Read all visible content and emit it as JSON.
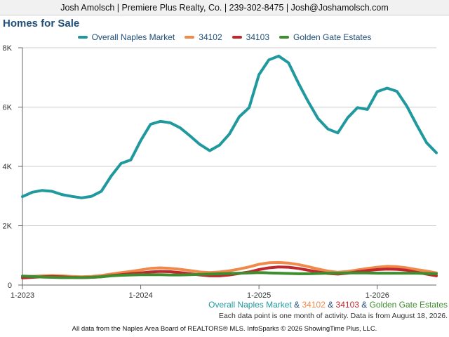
{
  "header": {
    "text": "Josh Amolsch | Premiere Plus Realty, Co. | 239-302-8475 | Josh@Joshamolsch.com"
  },
  "title": "Homes for Sale",
  "footer": {
    "series_line": [
      "Overall Naples Market",
      "34102",
      "34103",
      "Golden Gate Estates"
    ],
    "separator": "&",
    "note": "Each data point is one month of activity. Data is from August 18, 2026.",
    "credit": "All data from the Naples Area Board of REALTORS® MLS. InfoSparks © 2026 ShowingTime Plus, LLC."
  },
  "colors": {
    "overall": "#20999e",
    "z34102": "#f08a4b",
    "z34103": "#c0282d",
    "gge": "#3e8e2f",
    "grid": "#cccccc",
    "axis": "#666666"
  },
  "chart_data": {
    "type": "line",
    "title": "Homes for Sale",
    "grid": true,
    "legend_position": "top",
    "x_start": "2023-01",
    "x_end": "2026-07",
    "x_ticks": [
      "1-2023",
      "1-2024",
      "1-2025",
      "1-2026"
    ],
    "y_ticks": [
      "0",
      "2K",
      "4K",
      "6K",
      "8K"
    ],
    "ylim": [
      0,
      8000
    ],
    "x": [
      "2023-01",
      "2023-02",
      "2023-03",
      "2023-04",
      "2023-05",
      "2023-06",
      "2023-07",
      "2023-08",
      "2023-09",
      "2023-10",
      "2023-11",
      "2023-12",
      "2024-01",
      "2024-02",
      "2024-03",
      "2024-04",
      "2024-05",
      "2024-06",
      "2024-07",
      "2024-08",
      "2024-09",
      "2024-10",
      "2024-11",
      "2024-12",
      "2025-01",
      "2025-02",
      "2025-03",
      "2025-04",
      "2025-05",
      "2025-06",
      "2025-07",
      "2025-08",
      "2025-09",
      "2025-10",
      "2025-11",
      "2025-12",
      "2026-01",
      "2026-02",
      "2026-03",
      "2026-04",
      "2026-05",
      "2026-06",
      "2026-07"
    ],
    "series": [
      {
        "name": "Overall Naples Market",
        "color_key": "overall",
        "values": [
          2980,
          3130,
          3190,
          3160,
          3050,
          2990,
          2940,
          2990,
          3160,
          3670,
          4100,
          4220,
          4870,
          5420,
          5520,
          5470,
          5300,
          5030,
          4740,
          4530,
          4720,
          5090,
          5670,
          5980,
          7090,
          7590,
          7720,
          7490,
          6810,
          6180,
          5610,
          5260,
          5130,
          5640,
          5980,
          5920,
          6520,
          6640,
          6530,
          6030,
          5400,
          4800,
          4460
        ]
      },
      {
        "name": "34102",
        "color_key": "z34102",
        "values": [
          270,
          290,
          310,
          320,
          310,
          290,
          280,
          290,
          320,
          370,
          420,
          460,
          510,
          560,
          580,
          560,
          530,
          490,
          440,
          420,
          440,
          480,
          540,
          610,
          700,
          750,
          760,
          740,
          690,
          620,
          540,
          470,
          430,
          460,
          510,
          560,
          600,
          630,
          620,
          580,
          520,
          470,
          410
        ]
      },
      {
        "name": "34103",
        "color_key": "z34103",
        "values": [
          240,
          260,
          280,
          290,
          280,
          260,
          250,
          260,
          280,
          320,
          350,
          380,
          410,
          440,
          460,
          450,
          420,
          380,
          340,
          310,
          310,
          340,
          390,
          440,
          520,
          580,
          610,
          600,
          560,
          500,
          440,
          390,
          370,
          400,
          450,
          490,
          520,
          540,
          530,
          500,
          430,
          370,
          310
        ]
      },
      {
        "name": "Golden Gate Estates",
        "color_key": "gge",
        "values": [
          300,
          290,
          270,
          260,
          250,
          250,
          250,
          260,
          280,
          310,
          330,
          340,
          350,
          350,
          350,
          340,
          340,
          350,
          360,
          370,
          380,
          390,
          400,
          410,
          420,
          410,
          400,
          390,
          380,
          380,
          390,
          400,
          400,
          410,
          410,
          410,
          400,
          400,
          400,
          400,
          400,
          390,
          380
        ]
      }
    ]
  }
}
